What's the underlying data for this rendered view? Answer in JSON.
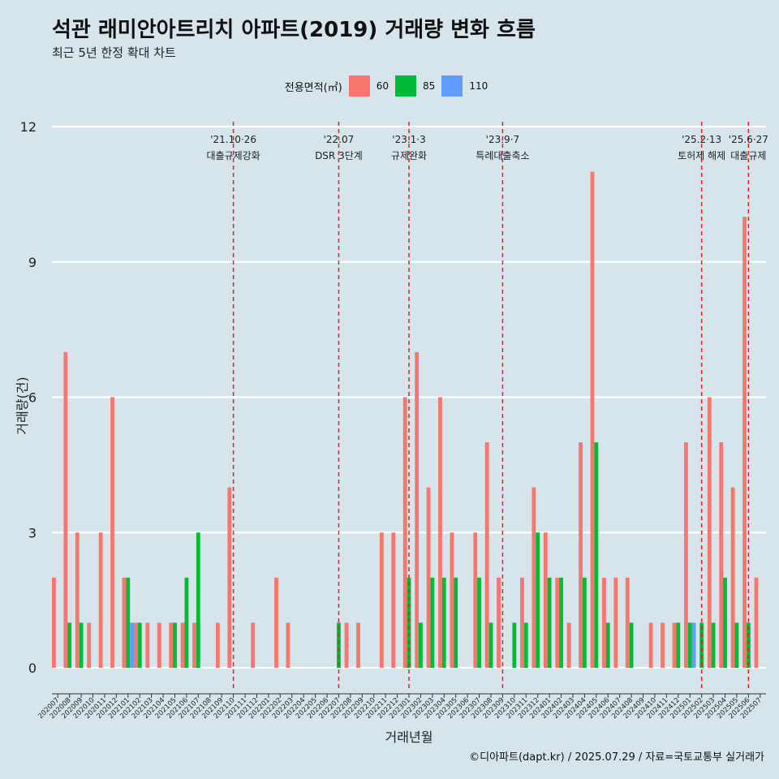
{
  "title": "석관 래미안아트리치 아파트(2019) 거래량 변화 흐름",
  "subtitle": "최근 5년 한정 확대 차트",
  "caption": "©디아파트(dapt.kr) / 2025.07.29 / 자료=국토교통부 실거래가",
  "legend": {
    "title": "전용면적(㎡)",
    "items": [
      {
        "label": "60",
        "color": "#f8766d"
      },
      {
        "label": "85",
        "color": "#00ba38"
      },
      {
        "label": "110",
        "color": "#619cff"
      }
    ]
  },
  "chart_data": {
    "type": "bar",
    "title": "석관 래미안아트리치 아파트(2019) 거래량 변화 흐름",
    "subtitle": "최근 5년 한정 확대 차트",
    "xlabel": "거래년월",
    "ylabel": "거래량(건)",
    "ylim": [
      0,
      12
    ],
    "yticks": [
      0,
      3,
      6,
      9,
      12
    ],
    "grid": "horizontal",
    "legend_position": "top",
    "categories": [
      "202007",
      "202008",
      "202009",
      "202010",
      "202011",
      "202012",
      "202101",
      "202102",
      "202103",
      "202104",
      "202105",
      "202106",
      "202107",
      "202108",
      "202109",
      "202110",
      "202111",
      "202112",
      "202201",
      "202202",
      "202203",
      "202204",
      "202205",
      "202206",
      "202207",
      "202208",
      "202209",
      "202210",
      "202211",
      "202212",
      "202301",
      "202302",
      "202303",
      "202304",
      "202305",
      "202306",
      "202307",
      "202308",
      "202309",
      "202310",
      "202311",
      "202312",
      "202401",
      "202402",
      "202403",
      "202404",
      "202405",
      "202406",
      "202407",
      "202408",
      "202409",
      "202410",
      "202411",
      "202412",
      "202501",
      "202502",
      "202503",
      "202504",
      "202505",
      "202506",
      "202507"
    ],
    "series": [
      {
        "name": "60",
        "color": "#f8766d",
        "values": [
          2,
          7,
          3,
          1,
          3,
          6,
          2,
          1,
          1,
          1,
          1,
          1,
          1,
          0,
          1,
          4,
          0,
          1,
          0,
          2,
          1,
          0,
          0,
          0,
          0,
          1,
          1,
          0,
          3,
          3,
          6,
          7,
          4,
          6,
          3,
          0,
          3,
          5,
          2,
          0,
          2,
          4,
          3,
          2,
          1,
          5,
          11,
          2,
          2,
          2,
          0,
          1,
          1,
          1,
          5,
          0,
          6,
          5,
          4,
          10,
          2
        ]
      },
      {
        "name": "85",
        "color": "#00ba38",
        "values": [
          0,
          1,
          1,
          0,
          0,
          0,
          2,
          1,
          0,
          0,
          1,
          2,
          3,
          0,
          0,
          0,
          0,
          0,
          0,
          0,
          0,
          0,
          0,
          0,
          1,
          0,
          0,
          0,
          0,
          0,
          2,
          1,
          2,
          2,
          2,
          0,
          2,
          1,
          0,
          1,
          1,
          3,
          2,
          2,
          0,
          2,
          5,
          1,
          0,
          1,
          0,
          0,
          0,
          1,
          1,
          1,
          1,
          2,
          1,
          1,
          0
        ]
      },
      {
        "name": "110",
        "color": "#619cff",
        "values": [
          0,
          0,
          0,
          0,
          0,
          0,
          1,
          0,
          0,
          0,
          0,
          0,
          0,
          0,
          0,
          0,
          0,
          0,
          0,
          0,
          0,
          0,
          0,
          0,
          0,
          0,
          0,
          0,
          0,
          0,
          0,
          0,
          0,
          0,
          0,
          0,
          0,
          0,
          0,
          0,
          0,
          0,
          0,
          0,
          0,
          0,
          0,
          0,
          0,
          0,
          0,
          0,
          0,
          0,
          1,
          0,
          0,
          0,
          0,
          0,
          0
        ]
      }
    ],
    "events": [
      {
        "month": "202110",
        "date": "'21.10·26",
        "label": "대출규제강화"
      },
      {
        "month": "202207",
        "date": "'22.07",
        "label": "DSR 3단계"
      },
      {
        "month": "202301",
        "date": "'23.1·3",
        "label": "규제완화"
      },
      {
        "month": "202309",
        "date": "'23.9·7",
        "label": "특례대출축소"
      },
      {
        "month": "202502",
        "date": "'25.2·13",
        "label": "토허제 해제"
      },
      {
        "month": "202506",
        "date": "'25.6·27",
        "label": "대출규제"
      }
    ]
  }
}
